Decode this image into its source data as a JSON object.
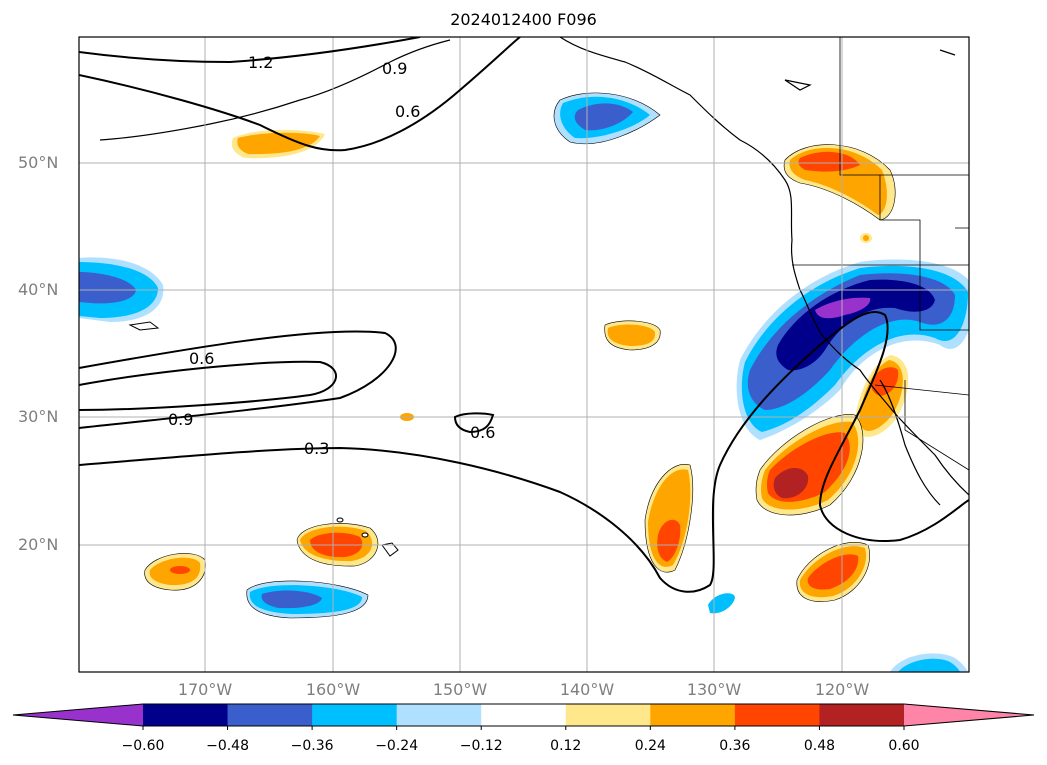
{
  "title": "2024012400 F096",
  "lat_labels": [
    {
      "text": "50°N"
    },
    {
      "text": "40°N"
    },
    {
      "text": "30°N"
    },
    {
      "text": "20°N"
    }
  ],
  "lon_labels": [
    {
      "text": "170°W"
    },
    {
      "text": "160°W"
    },
    {
      "text": "150°W"
    },
    {
      "text": "140°W"
    },
    {
      "text": "130°W"
    },
    {
      "text": "120°W"
    }
  ],
  "contour_labels": [
    "1.2",
    "0.9",
    "0.6",
    "0.6",
    "0.9",
    "0.3",
    "0.6"
  ],
  "colorbar": {
    "ticks": [
      "−0.60",
      "−0.48",
      "−0.36",
      "−0.24",
      "−0.12",
      "0.12",
      "0.24",
      "0.36",
      "0.48",
      "0.60"
    ],
    "colors": [
      "#9932cc",
      "#00008b",
      "#3a5fcd",
      "#00bfff",
      "#b0e0ff",
      "#ffffff",
      "#ffe88c",
      "#ffa500",
      "#ff4500",
      "#b22222",
      "#ff85a8"
    ]
  }
}
